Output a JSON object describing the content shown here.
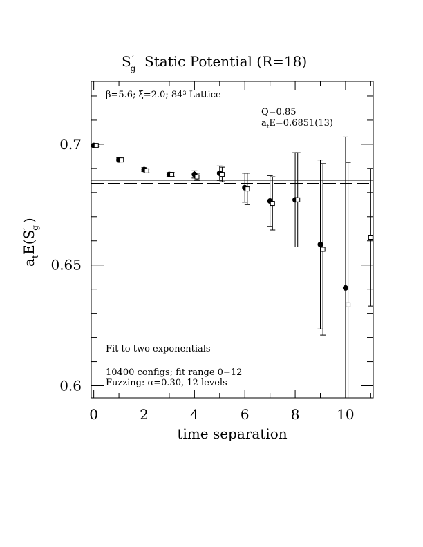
{
  "chart_data": {
    "type": "scatter",
    "title": {
      "main": "S",
      "sub": "g",
      "rest": "  Static Potential (R=18)"
    },
    "xlabel": "time separation",
    "ylabel": {
      "pre": "a",
      "sub": "t",
      "mid": "E(S",
      "sub2": "g",
      "post": ")"
    },
    "xlim": [
      -0.1,
      11.1
    ],
    "ylim": [
      0.595,
      0.726
    ],
    "x_major_ticks": [
      0,
      2,
      4,
      6,
      8,
      10
    ],
    "x_tick_labels": [
      "0",
      "2",
      "4",
      "6",
      "8",
      "10"
    ],
    "y_major_ticks": [
      0.6,
      0.65,
      0.7
    ],
    "y_tick_labels": [
      "0.6",
      "0.65",
      "0.7"
    ],
    "series": [
      {
        "marker": "filled-circle",
        "points": [
          {
            "x": 0,
            "y": 0.6995,
            "err": 0.0005
          },
          {
            "x": 1,
            "y": 0.6935,
            "err": 0.0008
          },
          {
            "x": 2,
            "y": 0.6895,
            "err": 0.0008
          },
          {
            "x": 3,
            "y": 0.6875,
            "err": 0.0008
          },
          {
            "x": 4,
            "y": 0.6875,
            "err": 0.0015
          },
          {
            "x": 5,
            "y": 0.688,
            "err": 0.003
          },
          {
            "x": 6,
            "y": 0.682,
            "err": 0.006
          },
          {
            "x": 7,
            "y": 0.6765,
            "err": 0.0105
          },
          {
            "x": 8,
            "y": 0.677,
            "err": 0.0195
          },
          {
            "x": 9,
            "y": 0.6585,
            "err": 0.035
          },
          {
            "x": 10,
            "y": 0.6405,
            "err": 0.0625
          }
        ]
      },
      {
        "marker": "open-square",
        "points": [
          {
            "x": 0.1,
            "y": 0.6995,
            "err": 0.0004
          },
          {
            "x": 1.1,
            "y": 0.6935,
            "err": 0.0007
          },
          {
            "x": 2.1,
            "y": 0.689,
            "err": 0.0007
          },
          {
            "x": 3.1,
            "y": 0.6875,
            "err": 0.0008
          },
          {
            "x": 4.1,
            "y": 0.6865,
            "err": 0.0015
          },
          {
            "x": 5.1,
            "y": 0.6875,
            "err": 0.003
          },
          {
            "x": 6.1,
            "y": 0.6815,
            "err": 0.0065
          },
          {
            "x": 7.1,
            "y": 0.6755,
            "err": 0.011
          },
          {
            "x": 8.1,
            "y": 0.677,
            "err": 0.0195
          },
          {
            "x": 9.1,
            "y": 0.6565,
            "err": 0.0355
          },
          {
            "x": 10.1,
            "y": 0.6335,
            "err": 0.059
          },
          {
            "x": 11.0,
            "y": 0.6615,
            "err": 0.0285
          }
        ]
      }
    ],
    "fit": {
      "value": 0.6851,
      "error": 0.0013,
      "x_range": [
        -0.1,
        11.1
      ]
    },
    "annotations": {
      "lattice": "β=5.6; ξ=2.0; 84³ Lattice",
      "q_value": "Q=0.85",
      "energy": {
        "pre": "a",
        "sub": "t",
        "post": "E=0.6851(13)"
      },
      "fit_note": "Fit to two exponentials",
      "configs": "10400 configs; fit range 0−12",
      "fuzzing": "Fuzzing: α=0.30, 12 levels"
    }
  }
}
